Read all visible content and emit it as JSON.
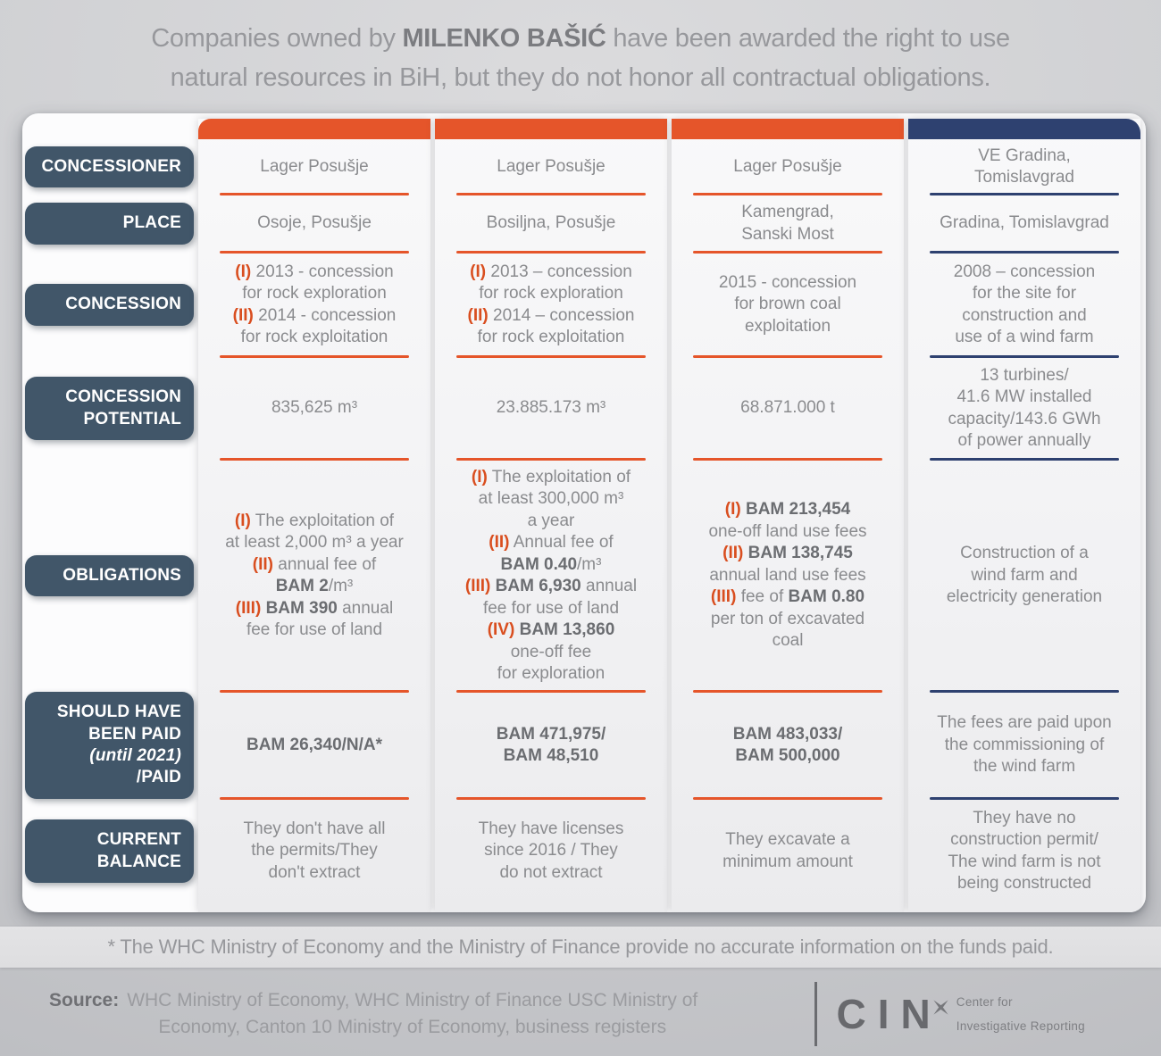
{
  "title": {
    "segments": [
      {
        "t": "Companies owned by "
      },
      {
        "t": "MILENKO BAŠIĆ",
        "c": "b"
      },
      {
        "t": " have been awarded the right to use\nnatural resources in BiH, but they do not honor all contractual obligations."
      }
    ]
  },
  "colors": {
    "accent_orange": "#e5552a",
    "accent_navy": "#2e4170",
    "row_label_bg": "#415669",
    "marker_orange": "#d94e1f"
  },
  "table": {
    "row_labels": [
      [
        {
          "t": "CONCESSIONER"
        }
      ],
      [
        {
          "t": "PLACE"
        }
      ],
      [
        {
          "t": "CONCESSION"
        }
      ],
      [
        {
          "t": "CONCESSION\nPOTENTIAL"
        }
      ],
      [
        {
          "t": "OBLIGATIONS"
        }
      ],
      [
        {
          "t": "SHOULD HAVE\nBEEN PAID\n"
        },
        {
          "t": "(until 2021)",
          "c": "i"
        },
        {
          "t": "\n/PAID"
        }
      ],
      [
        {
          "t": "CURRENT\nBALANCE"
        }
      ]
    ],
    "columns": [
      {
        "accent": "#e5552a",
        "cells": [
          [
            {
              "t": "Lager Posušje"
            }
          ],
          [
            {
              "t": "Osoje, Posušje"
            }
          ],
          [
            {
              "t": "(I)",
              "c": "m"
            },
            {
              "t": " 2013 - concession\nfor rock exploration\n"
            },
            {
              "t": "(II)",
              "c": "m"
            },
            {
              "t": " 2014 - concession\nfor rock exploitation"
            }
          ],
          [
            {
              "t": "835,625 m³"
            }
          ],
          [
            {
              "t": "(I)",
              "c": "m"
            },
            {
              "t": " The exploitation of\nat least 2,000 m³ a year\n"
            },
            {
              "t": "(II)",
              "c": "m"
            },
            {
              "t": " annual fee of\n"
            },
            {
              "t": "BAM 2",
              "c": "b"
            },
            {
              "t": "/m³\n"
            },
            {
              "t": "(III)",
              "c": "m"
            },
            {
              "t": " "
            },
            {
              "t": "BAM 390",
              "c": "b"
            },
            {
              "t": " annual\nfee for use of land"
            }
          ],
          [
            {
              "t": "BAM 26,340/N/A*",
              "c": "b"
            }
          ],
          [
            {
              "t": "They don't have all\nthe permits/They\ndon't extract"
            }
          ]
        ]
      },
      {
        "accent": "#e5552a",
        "cells": [
          [
            {
              "t": "Lager Posušje"
            }
          ],
          [
            {
              "t": "Bosiljna, Posušje"
            }
          ],
          [
            {
              "t": "(I)",
              "c": "m"
            },
            {
              "t": " 2013 – concession\nfor rock exploration\n"
            },
            {
              "t": "(II)",
              "c": "m"
            },
            {
              "t": " 2014 – concession\nfor rock exploitation"
            }
          ],
          [
            {
              "t": "23.885.173 m³"
            }
          ],
          [
            {
              "t": "(I)",
              "c": "m"
            },
            {
              "t": " The exploitation of\nat least 300,000 m³\na year\n"
            },
            {
              "t": "(II)",
              "c": "m"
            },
            {
              "t": " Annual fee of\n"
            },
            {
              "t": "BAM 0.40",
              "c": "b"
            },
            {
              "t": "/m³\n"
            },
            {
              "t": "(III)",
              "c": "m"
            },
            {
              "t": " "
            },
            {
              "t": "BAM 6,930",
              "c": "b"
            },
            {
              "t": " annual\nfee for use of land\n"
            },
            {
              "t": "(IV)",
              "c": "m"
            },
            {
              "t": " "
            },
            {
              "t": "BAM 13,860",
              "c": "b"
            },
            {
              "t": "\none-off fee\nfor exploration"
            }
          ],
          [
            {
              "t": "BAM 471,975/\nBAM 48,510",
              "c": "b"
            }
          ],
          [
            {
              "t": "They have licenses\nsince 2016 / They\ndo not extract"
            }
          ]
        ]
      },
      {
        "accent": "#e5552a",
        "cells": [
          [
            {
              "t": "Lager Posušje"
            }
          ],
          [
            {
              "t": "Kamengrad,\nSanski Most"
            }
          ],
          [
            {
              "t": "2015 - concession\nfor brown coal\nexploitation"
            }
          ],
          [
            {
              "t": "68.871.000 t"
            }
          ],
          [
            {
              "t": "(I)",
              "c": "m"
            },
            {
              "t": " "
            },
            {
              "t": "BAM 213,454",
              "c": "b"
            },
            {
              "t": "\none-off land use fees\n"
            },
            {
              "t": "(II)",
              "c": "m"
            },
            {
              "t": " "
            },
            {
              "t": "BAM 138,745",
              "c": "b"
            },
            {
              "t": "\nannual land use fees\n"
            },
            {
              "t": "(III)",
              "c": "m"
            },
            {
              "t": " fee of "
            },
            {
              "t": "BAM 0.80",
              "c": "b"
            },
            {
              "t": "\nper ton of excavated\ncoal"
            }
          ],
          [
            {
              "t": "BAM 483,033/\nBAM 500,000",
              "c": "b"
            }
          ],
          [
            {
              "t": "They excavate a\nminimum amount"
            }
          ]
        ]
      },
      {
        "accent": "#2e4170",
        "cells": [
          [
            {
              "t": "VE Gradina,\nTomislavgrad"
            }
          ],
          [
            {
              "t": "Gradina, Tomislavgrad"
            }
          ],
          [
            {
              "t": "2008 – concession\nfor the site for\nconstruction and\nuse of a wind farm"
            }
          ],
          [
            {
              "t": "13 turbines/\n41.6 MW installed\ncapacity/143.6 GWh\nof power annually"
            }
          ],
          [
            {
              "t": "Construction of a\nwind farm and\nelectricity generation"
            }
          ],
          [
            {
              "t": "The fees are paid upon\nthe commissioning of\nthe wind farm"
            }
          ],
          [
            {
              "t": "They have no\nconstruction permit/\nThe wind farm is not\nbeing constructed"
            }
          ]
        ]
      }
    ]
  },
  "footer": {
    "note": "* The WHC Ministry of Economy and the Ministry of Finance provide no accurate information on the funds paid.",
    "source_label": "Source:",
    "source_text": "WHC Ministry of Economy, WHC Ministry of Finance USC Ministry of\nEconomy, Canton 10 Ministry of Economy, business registers",
    "logo": {
      "name": "CIN",
      "tagline_line1": "Center for",
      "tagline_line2": "Investigative Reporting"
    }
  },
  "chart_data": {
    "type": "table",
    "title": "Companies owned by MILENKO BAŠIĆ have been awarded the right to use natural resources in BiH, but they do not honor all contractual obligations.",
    "row_headers": [
      "CONCESSIONER",
      "PLACE",
      "CONCESSION",
      "CONCESSION POTENTIAL",
      "OBLIGATIONS",
      "SHOULD HAVE BEEN PAID (until 2021)/PAID",
      "CURRENT BALANCE"
    ],
    "columns": [
      {
        "concessioner": "Lager Posušje",
        "place": "Osoje, Posušje",
        "concession": "(I) 2013 - concession for rock exploration (II) 2014 - concession for rock exploitation",
        "concession_potential": "835,625 m³",
        "obligations": "(I) The exploitation of at least 2,000 m³ a year (II) annual fee of BAM 2/m³ (III) BAM 390 annual fee for use of land",
        "should_have_been_paid_until_2021_paid": "BAM 26,340/N/A*",
        "current_balance": "They don't have all the permits/They don't extract"
      },
      {
        "concessioner": "Lager Posušje",
        "place": "Bosiljna, Posušje",
        "concession": "(I) 2013 – concession for rock exploration (II) 2014 – concession for rock exploitation",
        "concession_potential": "23.885.173 m³",
        "obligations": "(I) The exploitation of at least 300,000 m³ a year (II) Annual fee of BAM 0.40/m³ (III) BAM 6,930 annual fee for use of land (IV) BAM 13,860 one-off fee for exploration",
        "should_have_been_paid_until_2021_paid": "BAM 471,975/ BAM 48,510",
        "current_balance": "They have licenses since 2016 / They do not extract"
      },
      {
        "concessioner": "Lager Posušje",
        "place": "Kamengrad, Sanski Most",
        "concession": "2015 - concession for brown coal exploitation",
        "concession_potential": "68.871.000 t",
        "obligations": "(I) BAM 213,454 one-off land use fees (II) BAM 138,745 annual land use fees (III) fee of BAM 0.80 per ton of excavated coal",
        "should_have_been_paid_until_2021_paid": "BAM 483,033/ BAM 500,000",
        "current_balance": "They excavate a minimum amount"
      },
      {
        "concessioner": "VE Gradina, Tomislavgrad",
        "place": "Gradina, Tomislavgrad",
        "concession": "2008 – concession for the site for construction and use of a wind farm",
        "concession_potential": "13 turbines/ 41.6 MW installed capacity/143.6 GWh of power annually",
        "obligations": "Construction of a wind farm and electricity generation",
        "should_have_been_paid_until_2021_paid": "The fees are paid upon the commissioning of the wind farm",
        "current_balance": "They have no construction permit/ The wind farm is not being constructed"
      }
    ]
  }
}
